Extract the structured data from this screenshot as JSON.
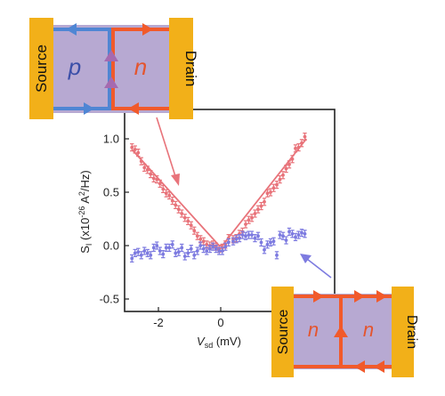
{
  "chart_data": {
    "type": "scatter",
    "xlabel_main": "V",
    "xlabel_sub": "sd",
    "xlabel_unit": " (mV)",
    "ylabel_main": "S",
    "ylabel_sub": "I",
    "ylabel_unit": " (x10",
    "ylabel_exp": "-26",
    "ylabel_tail": " A",
    "ylabel_exp2": "2",
    "ylabel_end": "/Hz)",
    "xlim": [
      -3,
      3
    ],
    "ylim": [
      -0.6,
      1.15
    ],
    "xticks": [
      -2,
      0
    ],
    "xtick_labels": [
      "-2",
      "0"
    ],
    "yticks": [
      1.0,
      0.5,
      0.0,
      -0.5
    ],
    "ytick_labels": [
      "1.0",
      "0.5",
      "0.0",
      "-0.5"
    ],
    "series": [
      {
        "color": "#e8737a",
        "points": [
          [
            -2.85,
            0.92
          ],
          [
            -2.75,
            0.9
          ],
          [
            -2.65,
            0.87
          ],
          [
            -2.55,
            0.79
          ],
          [
            -2.45,
            0.73
          ],
          [
            -2.35,
            0.71
          ],
          [
            -2.25,
            0.67
          ],
          [
            -2.15,
            0.63
          ],
          [
            -2.05,
            0.62
          ],
          [
            -1.95,
            0.58
          ],
          [
            -1.85,
            0.53
          ],
          [
            -1.75,
            0.49
          ],
          [
            -1.65,
            0.47
          ],
          [
            -1.55,
            0.42
          ],
          [
            -1.45,
            0.38
          ],
          [
            -1.35,
            0.34
          ],
          [
            -1.25,
            0.3
          ],
          [
            -1.15,
            0.26
          ],
          [
            -1.05,
            0.23
          ],
          [
            -0.95,
            0.19
          ],
          [
            -0.85,
            0.14
          ],
          [
            -0.75,
            0.09
          ],
          [
            -0.65,
            0.06
          ],
          [
            -0.55,
            0.04
          ],
          [
            -0.45,
            0.01
          ],
          [
            -0.35,
            0.0
          ],
          [
            -0.25,
            0.01
          ],
          [
            -0.15,
            -0.01
          ],
          [
            -0.05,
            -0.03
          ],
          [
            0.05,
            -0.02
          ],
          [
            0.15,
            0.01
          ],
          [
            0.25,
            0.07
          ],
          [
            0.4,
            0.06
          ],
          [
            0.5,
            0.07
          ],
          [
            0.6,
            0.11
          ],
          [
            0.7,
            0.13
          ],
          [
            0.8,
            0.2
          ],
          [
            0.9,
            0.24
          ],
          [
            1.0,
            0.26
          ],
          [
            1.1,
            0.3
          ],
          [
            1.2,
            0.34
          ],
          [
            1.3,
            0.37
          ],
          [
            1.4,
            0.41
          ],
          [
            1.5,
            0.49
          ],
          [
            1.6,
            0.5
          ],
          [
            1.7,
            0.54
          ],
          [
            1.8,
            0.57
          ],
          [
            1.9,
            0.62
          ],
          [
            2.0,
            0.66
          ],
          [
            2.1,
            0.72
          ],
          [
            2.2,
            0.76
          ],
          [
            2.3,
            0.81
          ],
          [
            2.4,
            0.91
          ],
          [
            2.5,
            0.92
          ],
          [
            2.6,
            0.96
          ],
          [
            2.7,
            1.02
          ]
        ],
        "fit": [
          [
            -2.85,
            0.9
          ],
          [
            -0.05,
            0.0
          ],
          [
            0.05,
            0.0
          ],
          [
            2.75,
            1.0
          ]
        ]
      },
      {
        "color": "#7d7be0",
        "points": [
          [
            -2.85,
            -0.12
          ],
          [
            -2.75,
            -0.07
          ],
          [
            -2.65,
            -0.06
          ],
          [
            -2.55,
            -0.09
          ],
          [
            -2.45,
            -0.05
          ],
          [
            -2.35,
            -0.07
          ],
          [
            -2.25,
            -0.09
          ],
          [
            -2.15,
            -0.02
          ],
          [
            -2.05,
            0.0
          ],
          [
            -1.95,
            -0.05
          ],
          [
            -1.85,
            -0.08
          ],
          [
            -1.75,
            -0.02
          ],
          [
            -1.65,
            -0.02
          ],
          [
            -1.55,
            0.01
          ],
          [
            -1.45,
            -0.07
          ],
          [
            -1.35,
            -0.06
          ],
          [
            -1.25,
            -0.02
          ],
          [
            -1.15,
            -0.1
          ],
          [
            -1.05,
            -0.07
          ],
          [
            -0.95,
            -0.03
          ],
          [
            -0.85,
            -0.09
          ],
          [
            -0.75,
            -0.05
          ],
          [
            -0.65,
            0.0
          ],
          [
            -0.55,
            -0.03
          ],
          [
            -0.45,
            -0.05
          ],
          [
            -0.35,
            -0.03
          ],
          [
            -0.25,
            -0.01
          ],
          [
            -0.15,
            -0.03
          ],
          [
            -0.05,
            -0.05
          ],
          [
            0.05,
            -0.05
          ],
          [
            0.15,
            -0.01
          ],
          [
            0.25,
            0.03
          ],
          [
            0.4,
            0.04
          ],
          [
            0.5,
            0.06
          ],
          [
            0.6,
            0.07
          ],
          [
            0.7,
            0.1
          ],
          [
            0.8,
            0.09
          ],
          [
            0.9,
            0.1
          ],
          [
            1.0,
            0.1
          ],
          [
            1.1,
            0.07
          ],
          [
            1.2,
            0.09
          ],
          [
            1.3,
            0.03
          ],
          [
            1.4,
            -0.04
          ],
          [
            1.5,
            0.01
          ],
          [
            1.6,
            0.03
          ],
          [
            1.7,
            0.04
          ],
          [
            1.8,
            -0.09
          ],
          [
            1.9,
            0.1
          ],
          [
            2.0,
            0.09
          ],
          [
            2.1,
            0.05
          ],
          [
            2.2,
            0.13
          ],
          [
            2.3,
            0.11
          ],
          [
            2.4,
            0.08
          ],
          [
            2.5,
            0.1
          ],
          [
            2.6,
            0.12
          ],
          [
            2.7,
            0.11
          ]
        ]
      }
    ]
  },
  "inset_pn": {
    "source": "Source",
    "drain": "Drain",
    "left": "p",
    "right": "n"
  },
  "inset_nn": {
    "source": "Source",
    "drain": "Drain",
    "left": "n",
    "right": "n"
  },
  "colors": {
    "red": "#e8737a",
    "blue": "#7d7be0",
    "edge_red": "#f15a2b",
    "edge_blue": "#4f86d4",
    "contact": "#f2b019",
    "channel": "#b7a9d2",
    "channel_edge": "#9aa4c8"
  }
}
